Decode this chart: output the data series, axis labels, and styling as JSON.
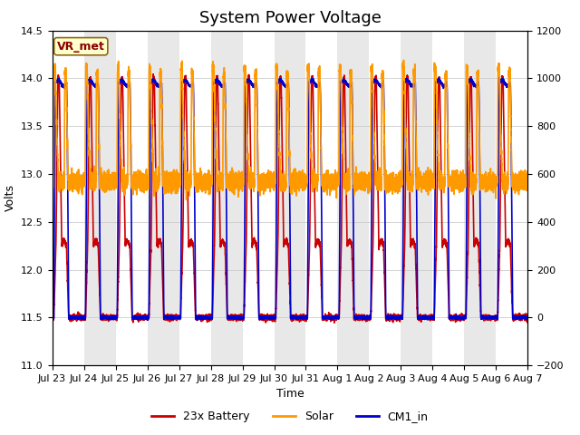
{
  "title": "System Power Voltage",
  "xlabel": "Time",
  "ylabel": "Volts",
  "ylim_left": [
    11.0,
    14.5
  ],
  "ylim_right": [
    -200,
    1200
  ],
  "yticks_left": [
    11.0,
    11.5,
    12.0,
    12.5,
    13.0,
    13.5,
    14.0,
    14.5
  ],
  "yticks_right": [
    -200,
    0,
    200,
    400,
    600,
    800,
    1000,
    1200
  ],
  "figure_bg": "#ffffff",
  "plot_bg": "#ffffff",
  "band_color_light": "#e8e8e8",
  "annotation_label": "VR_met",
  "annotation_fg": "#8B0000",
  "annotation_bg": "#ffffcc",
  "annotation_border": "#8B6914",
  "battery_color": "#cc0000",
  "solar_color": "#ff9900",
  "cm1_color": "#0000cc",
  "battery_label": "23x Battery",
  "solar_label": "Solar",
  "cm1_label": "CM1_in",
  "linewidth": 1.2,
  "title_fontsize": 13,
  "label_fontsize": 9,
  "tick_fontsize": 8,
  "legend_fontsize": 9,
  "n_days": 15
}
